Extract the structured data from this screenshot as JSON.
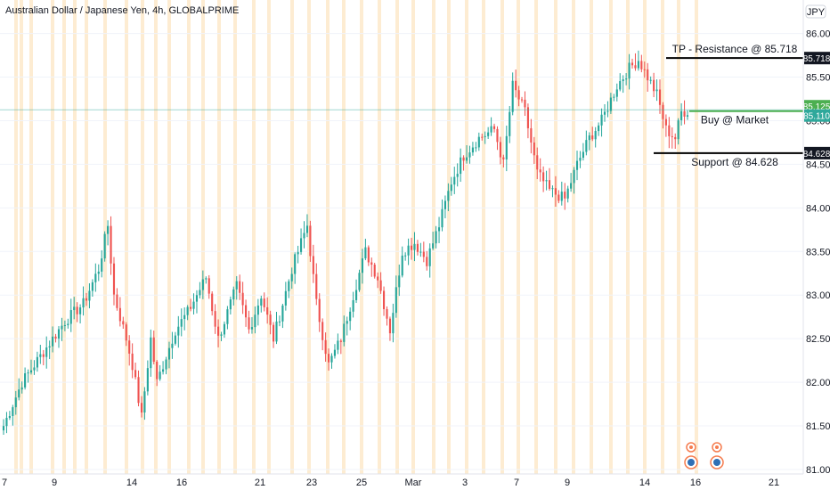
{
  "header": {
    "title": "Australian Dollar / Japanese Yen, 4h, GLOBALPRIME"
  },
  "currency_badge": "JPY",
  "colors": {
    "up": "#26a69a",
    "down": "#ef5350",
    "level_line": "#000000",
    "buy_line": "#4caf50",
    "current_line": "#2ea89b",
    "highlight_band": "#fde7c7"
  },
  "chart_data": {
    "type": "candlestick",
    "title": "Australian Dollar / Japanese Yen, 4h, GLOBALPRIME",
    "ylim": [
      81.0,
      86.2
    ],
    "y_ticks": [
      "86.000",
      "85.500",
      "85.000",
      "84.500",
      "84.000",
      "83.500",
      "83.000",
      "82.500",
      "82.000",
      "81.500",
      "81.000"
    ],
    "x_ticks": [
      "7",
      "9",
      "14",
      "16",
      "21",
      "23",
      "25",
      "Mar",
      "3",
      "7",
      "9",
      "14",
      "16",
      "21"
    ],
    "anchors": [
      [
        0,
        81.5
      ],
      [
        6,
        82.0
      ],
      [
        12,
        82.3
      ],
      [
        20,
        82.7
      ],
      [
        26,
        82.9
      ],
      [
        31,
        83.3
      ],
      [
        34,
        83.8
      ],
      [
        36,
        83.0
      ],
      [
        40,
        82.5
      ],
      [
        42,
        82.2
      ],
      [
        45,
        81.6
      ],
      [
        48,
        82.5
      ],
      [
        50,
        82.0
      ],
      [
        56,
        82.6
      ],
      [
        60,
        82.8
      ],
      [
        66,
        83.2
      ],
      [
        70,
        82.5
      ],
      [
        76,
        83.1
      ],
      [
        80,
        82.6
      ],
      [
        84,
        83.0
      ],
      [
        88,
        82.5
      ],
      [
        94,
        83.3
      ],
      [
        99,
        83.8
      ],
      [
        102,
        82.9
      ],
      [
        106,
        82.2
      ],
      [
        110,
        82.5
      ],
      [
        114,
        83.0
      ],
      [
        118,
        83.5
      ],
      [
        122,
        83.2
      ],
      [
        126,
        82.6
      ],
      [
        130,
        83.5
      ],
      [
        134,
        83.6
      ],
      [
        138,
        83.4
      ],
      [
        142,
        83.8
      ],
      [
        146,
        84.3
      ],
      [
        150,
        84.6
      ],
      [
        155,
        84.8
      ],
      [
        160,
        84.9
      ],
      [
        163,
        84.5
      ],
      [
        166,
        85.4
      ],
      [
        170,
        85.1
      ],
      [
        174,
        84.4
      ],
      [
        178,
        84.2
      ],
      [
        183,
        84.1
      ],
      [
        187,
        84.5
      ],
      [
        191,
        84.8
      ],
      [
        195,
        85.0
      ],
      [
        200,
        85.4
      ],
      [
        204,
        85.6
      ],
      [
        207,
        85.7
      ],
      [
        210,
        85.5
      ],
      [
        213,
        85.3
      ],
      [
        216,
        84.9
      ],
      [
        219,
        84.8
      ],
      [
        221,
        85.1
      ],
      [
        223,
        85.11
      ]
    ],
    "levels": [
      {
        "label": "TP - Resistance @ 85.718",
        "value": 85.718,
        "value_label": "85.718"
      },
      {
        "label": "Buy @ Market",
        "value": 85.11,
        "value_label": "85.110"
      },
      {
        "label": "Support @ 84.628",
        "value": 84.628,
        "value_label": "84.628"
      }
    ],
    "current_price": {
      "value": 85.125,
      "label": "85.125"
    }
  }
}
